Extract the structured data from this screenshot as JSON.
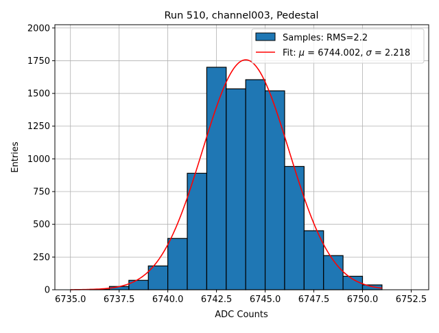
{
  "chart_data": {
    "type": "bar",
    "title": "Run 510, channel003, Pedestal",
    "xlabel": "ADC Counts",
    "ylabel": "Entries",
    "xlim": [
      6734.2,
      6753.4
    ],
    "ylim": [
      0,
      2025
    ],
    "grid": true,
    "legend_placement": "top-right",
    "xticks": [
      6735.0,
      6737.5,
      6740.0,
      6742.5,
      6745.0,
      6747.5,
      6750.0,
      6752.5
    ],
    "xtick_labels": [
      "6735.0",
      "6737.5",
      "6740.0",
      "6742.5",
      "6745.0",
      "6747.5",
      "6750.0",
      "6752.5"
    ],
    "yticks": [
      0,
      250,
      500,
      750,
      1000,
      1250,
      1500,
      1750,
      2000
    ],
    "ytick_labels": [
      "0",
      "250",
      "500",
      "750",
      "1000",
      "1250",
      "1500",
      "1750",
      "2000"
    ],
    "bin_edges": [
      6736,
      6737,
      6738,
      6739,
      6740,
      6741,
      6742,
      6743,
      6744,
      6745,
      6746,
      6747,
      6748,
      6749,
      6750,
      6751
    ],
    "values": [
      3,
      25,
      72,
      182,
      392,
      890,
      1700,
      1535,
      1605,
      1520,
      942,
      451,
      261,
      103,
      37
    ],
    "series": [
      {
        "name": "Samples: RMS=2.2",
        "type": "histogram",
        "color": "#1f77b4"
      },
      {
        "name": "Fit: μ = 6744.002, σ = 2.218",
        "type": "line",
        "color": "#ff0000",
        "mu": 6744.002,
        "sigma": 2.218,
        "amplitude": 1757,
        "x_range": [
          6735,
          6751
        ]
      }
    ],
    "legend": {
      "items": [
        {
          "label": "Samples: RMS=2.2"
        },
        {
          "label_prefix": "Fit: ",
          "mu_symbol": "μ",
          "mu_text": " = 6744.002, ",
          "sigma_symbol": "σ",
          "sigma_text": " = 2.218"
        }
      ]
    }
  }
}
